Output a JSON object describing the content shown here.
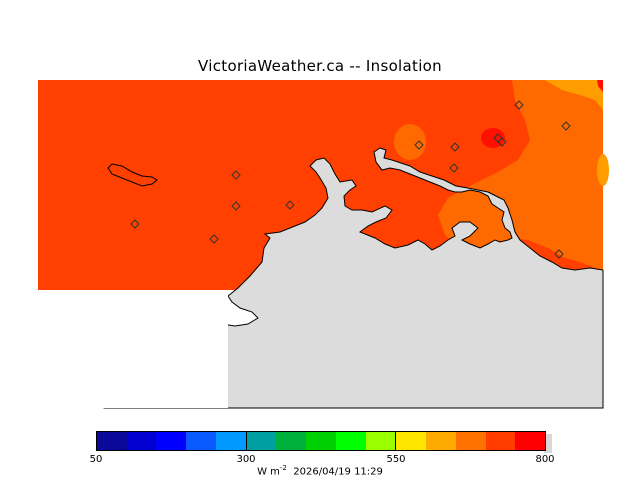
{
  "title": "VictoriaWeather.ca -- Insolation",
  "colorbar": {
    "ticks": [
      "50",
      "300",
      "550",
      "800"
    ],
    "colors": [
      "#0a0a9a",
      "#0000d0",
      "#0000ff",
      "#0a5aff",
      "#0099ff",
      "#00a0a0",
      "#00b03c",
      "#00d000",
      "#00ff00",
      "#99ff00",
      "#ffe600",
      "#ffaa00",
      "#ff7200",
      "#ff3b00",
      "#ff0000"
    ],
    "units_base": "W m",
    "units_exp": "-2",
    "timestamp": "2026/04/19 11:29"
  },
  "colors": {
    "field_base": "#ff4000",
    "field_mid": "#ff6a00",
    "field_high": "#ff9d00",
    "field_peak": "#ff1000",
    "land": "#dcdcdc",
    "coast": "#000000"
  }
}
